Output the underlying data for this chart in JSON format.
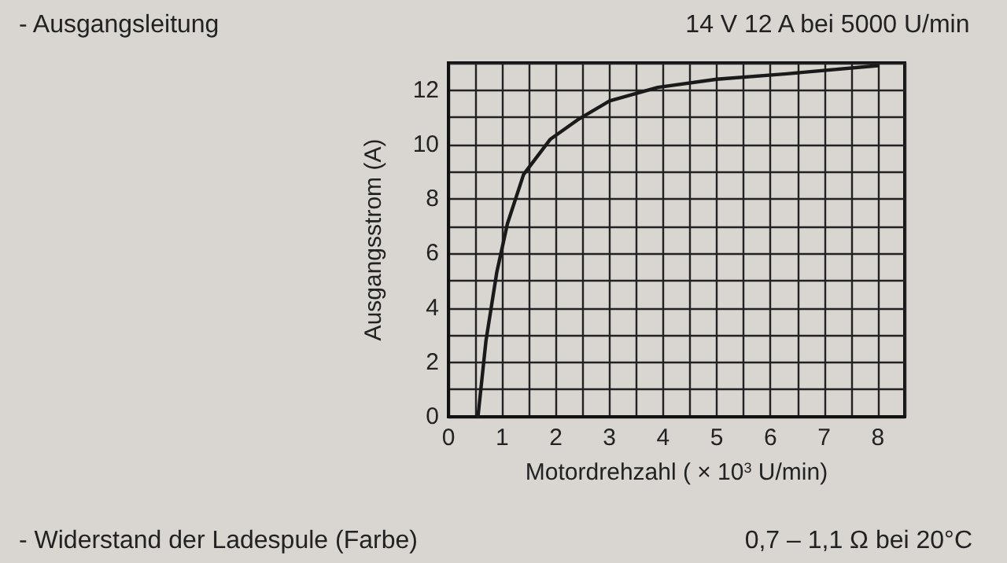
{
  "chart_data": {
    "type": "line",
    "xlabel": "Motordrehzahl ( × 10$^{3}$ U/min)",
    "ylabel": "Ausgangsstrom (A)",
    "annotations": [
      "- Ausgangsleitung",
      "14 V 12 A bei 5000 U/min",
      "- Widerstand der Ladespule (Farbe)",
      "0,7 – 1,1 Ω bei 20°C"
    ],
    "series": [
      {
        "color": "#1a1a1a",
        "x": [
          0.55,
          0.7,
          0.9,
          1.1,
          1.4,
          1.9,
          2.4,
          3,
          3.9,
          5,
          6.3,
          8
        ],
        "values": [
          0,
          2.8,
          5.3,
          7.1,
          8.9,
          10.2,
          10.9,
          11.6,
          12.1,
          12.4,
          12.6,
          12.9
        ]
      }
    ],
    "xlim": [
      0,
      8.5
    ],
    "xticks": [
      0,
      {
        "value": 0.5,
        "label": null
      },
      1,
      {
        "value": 1.5,
        "label": null
      },
      2,
      {
        "value": 2.5,
        "label": null
      },
      3,
      {
        "value": 3.5,
        "label": null
      },
      4,
      {
        "value": 4.5,
        "label": null
      },
      5,
      {
        "value": 5.5,
        "label": null
      },
      6,
      {
        "value": 6.5,
        "label": null
      },
      7,
      {
        "value": 7.5,
        "label": null
      },
      8,
      {
        "value": 8.5,
        "label": null
      }
    ],
    "ylim": [
      0,
      13
    ],
    "yticks": [
      0,
      {
        "value": 1,
        "label": null
      },
      2,
      {
        "value": 3,
        "label": null
      },
      4,
      {
        "value": 5,
        "label": null
      },
      6,
      {
        "value": 7,
        "label": null
      },
      8,
      {
        "value": 9,
        "label": null
      },
      10,
      {
        "value": 11,
        "label": null
      },
      12,
      {
        "value": 13,
        "label": null
      }
    ],
    "grid": true,
    "marker": "none",
    "line_style": "solid"
  }
}
